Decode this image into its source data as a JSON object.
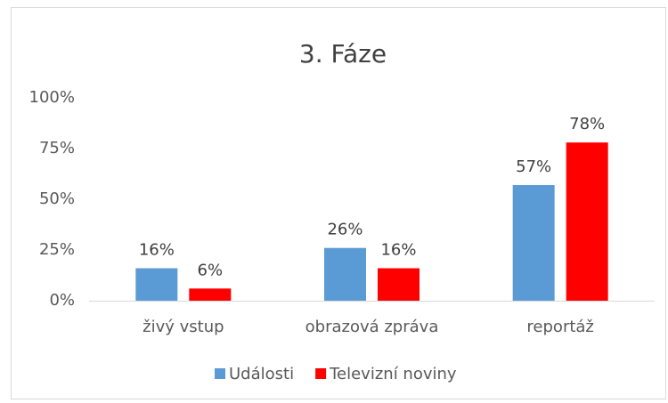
{
  "chart_data": {
    "type": "bar",
    "title": "3. Fáze",
    "categories": [
      "živý vstup",
      "obrazová zpráva",
      "reportáž"
    ],
    "series": [
      {
        "name": "Události",
        "color": "#5b9bd5",
        "values": [
          16,
          26,
          57
        ],
        "value_labels": [
          "16%",
          "26%",
          "57%"
        ]
      },
      {
        "name": "Televizní noviny",
        "color": "#ff0000",
        "values": [
          6,
          16,
          78
        ],
        "value_labels": [
          "6%",
          "16%",
          "78%"
        ]
      }
    ],
    "ylim": [
      0,
      100
    ],
    "yticks": [
      {
        "value": 0,
        "label": "0%"
      },
      {
        "value": 25,
        "label": "25%"
      },
      {
        "value": 50,
        "label": "50%"
      },
      {
        "value": 75,
        "label": "75%"
      },
      {
        "value": 100,
        "label": "100%"
      }
    ],
    "grid": false,
    "legend": "bottom"
  }
}
